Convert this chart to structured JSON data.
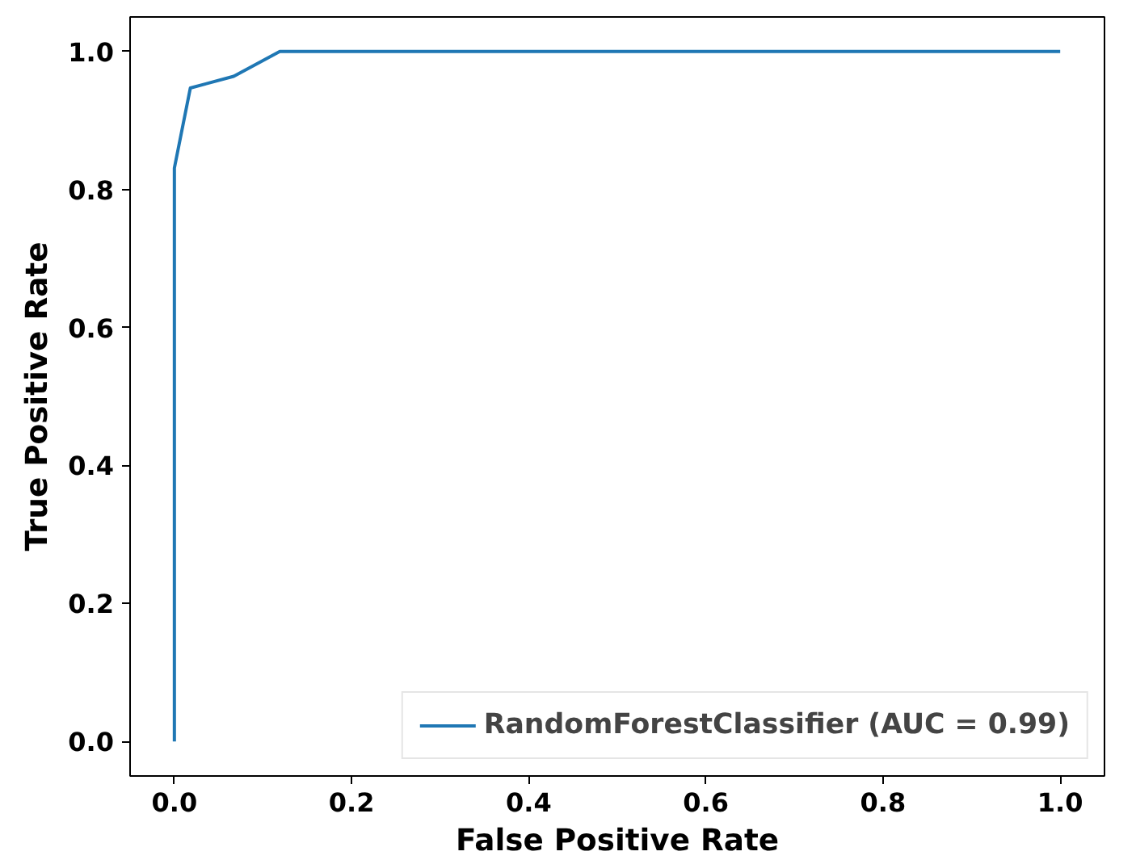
{
  "chart_data": {
    "type": "line",
    "xlabel": "False Positive Rate",
    "ylabel": "True Positive Rate",
    "xlim": [
      -0.05,
      1.05
    ],
    "ylim": [
      -0.05,
      1.05
    ],
    "xticks": [
      {
        "value": 0,
        "label": "0.0"
      },
      0.2,
      0.4,
      0.6,
      0.8,
      {
        "value": 1,
        "label": "1.0"
      }
    ],
    "yticks": [
      {
        "value": 0,
        "label": "0.0"
      },
      0.2,
      0.4,
      0.6,
      0.8,
      {
        "value": 1,
        "label": "1.0"
      }
    ],
    "series": [
      {
        "name": "RandomForestClassifier (AUC = 0.99)",
        "color": "#1f77b4",
        "x": [
          0,
          0,
          0.018,
          0.067,
          0.119,
          1
        ],
        "values": [
          0,
          0.831,
          0.947,
          0.964,
          1,
          1
        ]
      }
    ],
    "grid": false,
    "legend": "bottom right",
    "marker": "none",
    "line_style": "solid"
  }
}
